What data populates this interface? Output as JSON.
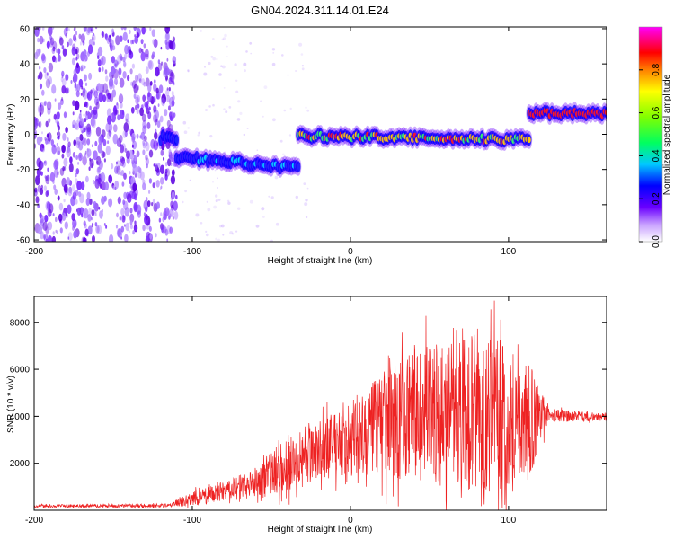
{
  "title": "GN04.2024.311.14.01.E24",
  "chart_data": [
    {
      "type": "heatmap",
      "xlabel": "Height of straight line (km)",
      "ylabel": "Frequency (Hz)",
      "xlim": [
        -200,
        162
      ],
      "ylim": [
        -61,
        61
      ],
      "xticks": [
        -200,
        -100,
        0,
        100
      ],
      "yticks": [
        -60,
        -40,
        -20,
        0,
        20,
        40,
        60
      ],
      "colorbar": {
        "label": "Normalized spectral amplitude",
        "range": [
          0,
          1
        ],
        "ticks": [
          "0.0",
          "0.2",
          "0.4",
          "0.6",
          "0.8"
        ]
      },
      "noise_region": {
        "x": [
          -200,
          -110
        ],
        "frequency": [
          -61,
          61
        ]
      },
      "signal_segments": [
        {
          "x": [
            -120,
            -110
          ],
          "frequency": -2,
          "amplitude": 0.3
        },
        {
          "x": [
            -110,
            -33
          ],
          "frequency": [
            -13,
            -19
          ],
          "amplitude": 0.4
        },
        {
          "x": [
            -33,
            113
          ],
          "frequency": [
            -1,
            -3
          ],
          "amplitude": 0.85
        },
        {
          "x": [
            113,
            162
          ],
          "frequency": 12,
          "amplitude": 1.0
        }
      ]
    },
    {
      "type": "line",
      "xlabel": "Height of straight line (km)",
      "ylabel": "SNR (10 * v/v)",
      "xlim": [
        -200,
        162
      ],
      "ylim": [
        0,
        9100
      ],
      "xticks": [
        -200,
        -100,
        0,
        100
      ],
      "yticks": [
        2000,
        4000,
        6000,
        8000
      ],
      "color": "#ee2222",
      "envelope": [
        {
          "x": -200,
          "mean": 180,
          "amp": 60
        },
        {
          "x": -115,
          "mean": 200,
          "amp": 80
        },
        {
          "x": -100,
          "mean": 500,
          "amp": 300
        },
        {
          "x": -80,
          "mean": 800,
          "amp": 400
        },
        {
          "x": -60,
          "mean": 1200,
          "amp": 600
        },
        {
          "x": -40,
          "mean": 2000,
          "amp": 1200
        },
        {
          "x": -20,
          "mean": 2600,
          "amp": 1200
        },
        {
          "x": 0,
          "mean": 3000,
          "amp": 1600
        },
        {
          "x": 20,
          "mean": 3600,
          "amp": 2200
        },
        {
          "x": 40,
          "mean": 4000,
          "amp": 2800
        },
        {
          "x": 60,
          "mean": 4200,
          "amp": 3000
        },
        {
          "x": 80,
          "mean": 4100,
          "amp": 3400
        },
        {
          "x": 100,
          "mean": 3900,
          "amp": 3300
        },
        {
          "x": 115,
          "mean": 3800,
          "amp": 2200
        },
        {
          "x": 125,
          "mean": 4050,
          "amp": 300
        },
        {
          "x": 162,
          "mean": 3950,
          "amp": 150
        }
      ]
    }
  ]
}
